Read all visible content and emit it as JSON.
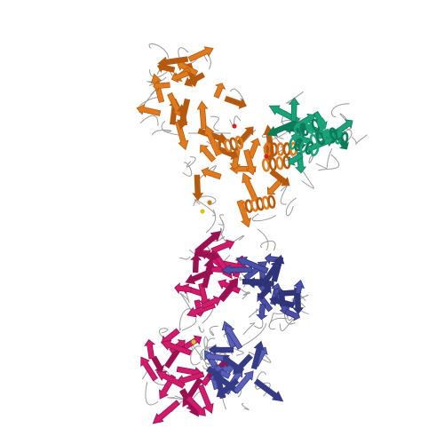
{
  "scene": {
    "kind": "protein-ribbon-structure",
    "background": "#ffffff",
    "domains": [
      {
        "name": "upper-propeller-domain",
        "color": "#e07a1f",
        "shade": "#b45a10",
        "style": "beta-sheet"
      },
      {
        "name": "middle-propeller-domain",
        "color": "#e07a1f",
        "shade": "#b45a10",
        "style": "beta-helix"
      },
      {
        "name": "green-subunit",
        "color": "#1aa37a",
        "shade": "#0d7a58",
        "style": "beta-helix"
      },
      {
        "name": "heavy-chain-variable",
        "color": "#d01c6b",
        "shade": "#9b1050",
        "style": "beta-sheet"
      },
      {
        "name": "light-chain-variable",
        "color": "#4a4fa8",
        "shade": "#2f3378",
        "style": "beta-sheet"
      },
      {
        "name": "heavy-chain-constant",
        "color": "#d01c6b",
        "shade": "#9b1050",
        "style": "beta-sheet"
      },
      {
        "name": "light-chain-constant",
        "color": "#5a60b8",
        "shade": "#363b85",
        "style": "beta-sheet"
      }
    ],
    "loop_color": "#9a9a9a",
    "accent_colors": [
      "#d4c420",
      "#e02020",
      "#c08020"
    ]
  }
}
